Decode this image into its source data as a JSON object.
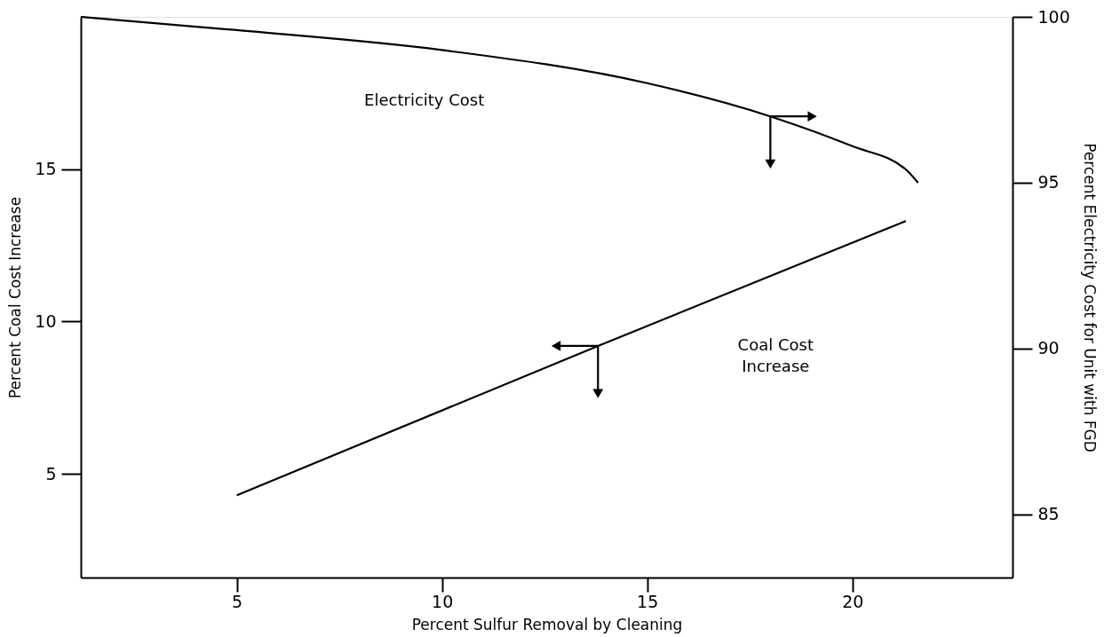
{
  "chart_data": {
    "type": "line",
    "xlabel": "Percent Sulfur Removal by Cleaning",
    "ylabel": "Percent Coal Cost Increase",
    "y2label": "Percent Electricity Cost for Unit with FGD",
    "xlim": [
      1.2,
      23.9
    ],
    "xticks": [
      5,
      10,
      15,
      20
    ],
    "ylim": [
      1.6,
      20.0
    ],
    "yticks": [
      5,
      10,
      15
    ],
    "y2lim": [
      83.1,
      100
    ],
    "y2ticks": [
      85,
      90,
      95,
      100
    ],
    "series": [
      {
        "name": "Electricity Cost",
        "color": "#000000",
        "axis": "y2",
        "x": [
          1.2,
          5,
          10,
          15,
          18,
          20,
          21.3,
          21.6
        ],
        "values": [
          100,
          99.6,
          99.0,
          98.0,
          97.0,
          96.1,
          95.4,
          95.0
        ]
      },
      {
        "name": "Coal Cost Increase",
        "color": "#000000",
        "axis": "y",
        "x": [
          5,
          13.8,
          21.3
        ],
        "values": [
          4.3,
          9.2,
          13.3
        ]
      }
    ],
    "marker": "none",
    "line_style": "solid"
  }
}
